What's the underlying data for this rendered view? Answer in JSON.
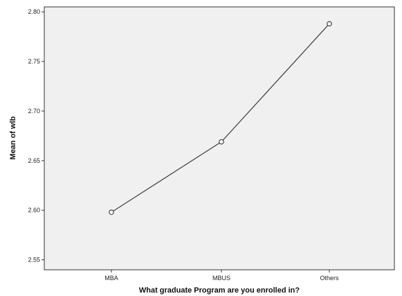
{
  "chart_data": {
    "type": "line",
    "categories": [
      "MBA",
      "MBUS",
      "Others"
    ],
    "values": [
      2.598,
      2.669,
      2.788
    ],
    "xlabel": "What graduate Program are you enrolled in?",
    "ylabel": "Mean of wlb",
    "ylim": [
      2.54,
      2.805
    ],
    "yticks": [
      2.55,
      2.6,
      2.65,
      2.7,
      2.75,
      2.8
    ],
    "ytick_labels": [
      "2.55",
      "2.60",
      "2.65",
      "2.70",
      "2.75",
      "2.80"
    ],
    "grid": false,
    "legend": "none",
    "colors": {
      "plot_background": "#f0f0f0",
      "line": "#444444",
      "marker_fill": "#ffffff",
      "frame": "#333333"
    }
  }
}
